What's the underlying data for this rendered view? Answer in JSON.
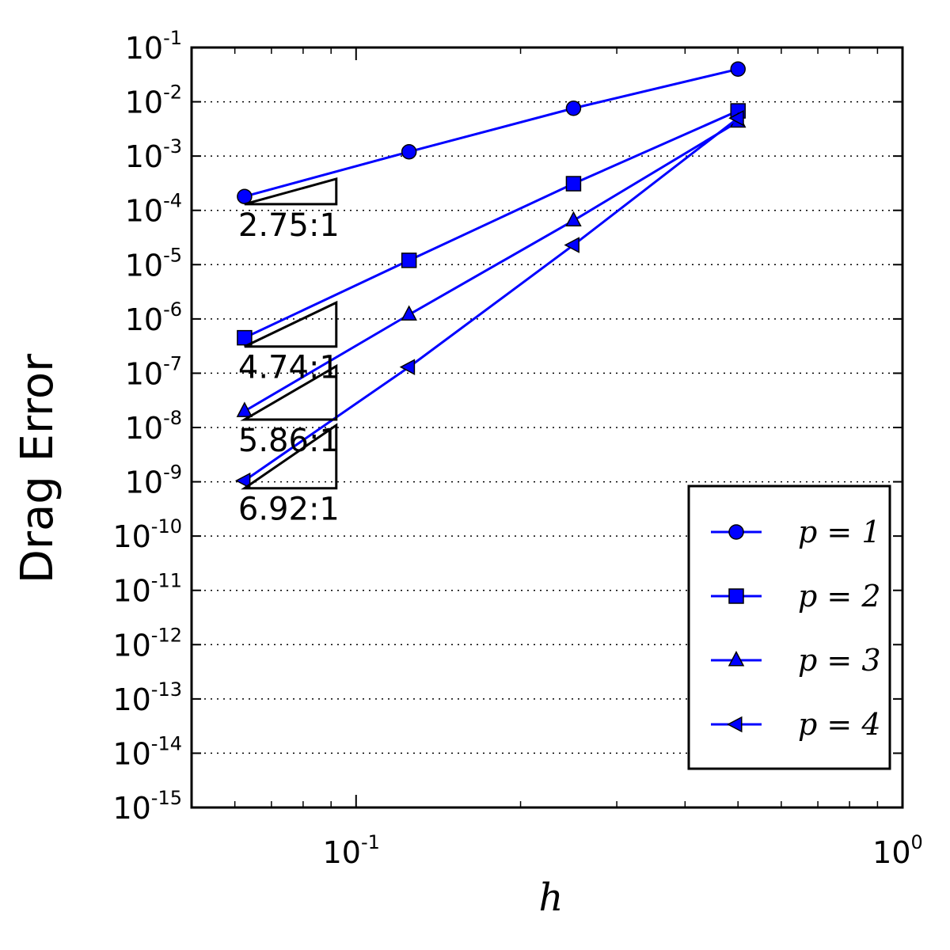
{
  "chart_data": {
    "type": "line",
    "xscale": "log",
    "yscale": "log",
    "xlim": [
      0.05,
      1.0
    ],
    "ylim": [
      1e-15,
      0.1
    ],
    "xlabel": "h",
    "ylabel": "Drag Error",
    "grid": "horizontal-dotted",
    "legend_position": "lower-right",
    "x_ticks": [
      {
        "value": 0.1,
        "base": "10",
        "exp": "-1"
      },
      {
        "value": 1.0,
        "base": "10",
        "exp": "0"
      }
    ],
    "y_ticks": [
      {
        "value": 0.1,
        "base": "10",
        "exp": "-1"
      },
      {
        "value": 0.01,
        "base": "10",
        "exp": "-2"
      },
      {
        "value": 0.001,
        "base": "10",
        "exp": "-3"
      },
      {
        "value": 0.0001,
        "base": "10",
        "exp": "-4"
      },
      {
        "value": 1e-05,
        "base": "10",
        "exp": "-5"
      },
      {
        "value": 1e-06,
        "base": "10",
        "exp": "-6"
      },
      {
        "value": 1e-07,
        "base": "10",
        "exp": "-7"
      },
      {
        "value": 1e-08,
        "base": "10",
        "exp": "-8"
      },
      {
        "value": 1e-09,
        "base": "10",
        "exp": "-9"
      },
      {
        "value": 1e-10,
        "base": "10",
        "exp": "-10"
      },
      {
        "value": 1e-11,
        "base": "10",
        "exp": "-11"
      },
      {
        "value": 1e-12,
        "base": "10",
        "exp": "-12"
      },
      {
        "value": 1e-13,
        "base": "10",
        "exp": "-13"
      },
      {
        "value": 1e-14,
        "base": "10",
        "exp": "-14"
      },
      {
        "value": 1e-15,
        "base": "10",
        "exp": "-15"
      }
    ],
    "series": [
      {
        "name": "p = 1",
        "marker": "circle",
        "x": [
          0.0625,
          0.125,
          0.25,
          0.5
        ],
        "y": [
          0.00018,
          0.0012,
          0.0076,
          0.04
        ]
      },
      {
        "name": "p = 2",
        "marker": "square",
        "x": [
          0.0625,
          0.125,
          0.25,
          0.5
        ],
        "y": [
          4.5e-07,
          1.2e-05,
          0.00031,
          0.0068
        ]
      },
      {
        "name": "p = 3",
        "marker": "triangle-up",
        "x": [
          0.0625,
          0.125,
          0.25,
          0.5
        ],
        "y": [
          2e-08,
          1.2e-06,
          6.5e-05,
          0.0043
        ]
      },
      {
        "name": "p = 4",
        "marker": "triangle-left",
        "x": [
          0.0625,
          0.125,
          0.25,
          0.5
        ],
        "y": [
          1.05e-09,
          1.3e-07,
          2.3e-05,
          0.005
        ]
      }
    ],
    "slope_annotations": [
      {
        "label": "2.75:1",
        "x": [
          0.0625,
          0.092
        ],
        "y": [
          0.00013,
          0.00038
        ]
      },
      {
        "label": "4.74:1",
        "x": [
          0.0625,
          0.092
        ],
        "y": [
          3.1e-07,
          2e-06
        ]
      },
      {
        "label": "5.86:1",
        "x": [
          0.0625,
          0.092
        ],
        "y": [
          1.4e-08,
          1.35e-07
        ]
      },
      {
        "label": "6.92:1",
        "x": [
          0.0625,
          0.092
        ],
        "y": [
          7.6e-10,
          1.1e-08
        ]
      }
    ],
    "colors": {
      "line": "#0000ff",
      "marker": "#0000ff",
      "marker_edge": "#000000"
    }
  }
}
